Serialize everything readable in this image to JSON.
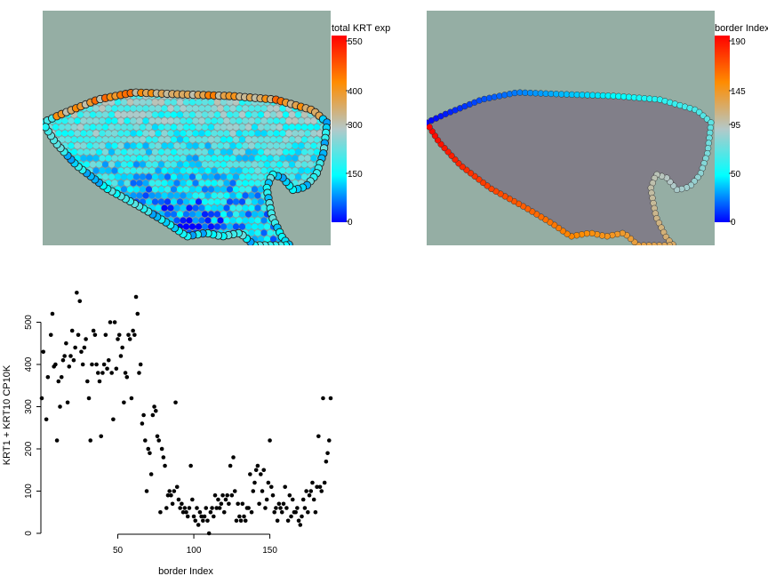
{
  "panels": [
    {
      "legend_title": "total KRT exp",
      "legend_ticks": [
        "550",
        "400",
        "300",
        "150",
        "0"
      ],
      "legend_colors": [
        "#ff0000",
        "#ff8c00",
        "#b4c8c8",
        "#00ffff",
        "#0000ff"
      ],
      "tissue_color": "#7b6f80",
      "background_color": "#95aea4"
    },
    {
      "legend_title": "border Index",
      "legend_ticks": [
        "190",
        "145",
        "95",
        "50",
        "0"
      ],
      "legend_colors": [
        "#ff0000",
        "#ff8c00",
        "#b4c8c8",
        "#00ffff",
        "#0000ff"
      ],
      "tissue_color": "#7b6f80",
      "background_color": "#95aea4"
    }
  ],
  "chart_data": {
    "type": "scatter",
    "xlabel": "border Index",
    "ylabel": "KRT1 + KRT10 CP10K",
    "x_ticks": [
      "50",
      "100",
      "150"
    ],
    "y_ticks": [
      "0",
      "100",
      "200",
      "300",
      "400",
      "500"
    ],
    "xlim": [
      0,
      190
    ],
    "ylim": [
      0,
      560
    ],
    "series_color": "#000000",
    "points": [
      [
        0,
        320
      ],
      [
        1,
        430
      ],
      [
        3,
        270
      ],
      [
        4,
        370
      ],
      [
        6,
        470
      ],
      [
        7,
        520
      ],
      [
        8,
        395
      ],
      [
        9,
        400
      ],
      [
        10,
        220
      ],
      [
        11,
        360
      ],
      [
        12,
        300
      ],
      [
        13,
        370
      ],
      [
        14,
        410
      ],
      [
        15,
        420
      ],
      [
        16,
        450
      ],
      [
        17,
        310
      ],
      [
        18,
        395
      ],
      [
        19,
        420
      ],
      [
        20,
        480
      ],
      [
        21,
        410
      ],
      [
        22,
        440
      ],
      [
        23,
        570
      ],
      [
        24,
        470
      ],
      [
        25,
        550
      ],
      [
        26,
        430
      ],
      [
        27,
        400
      ],
      [
        28,
        440
      ],
      [
        29,
        460
      ],
      [
        30,
        360
      ],
      [
        31,
        320
      ],
      [
        32,
        220
      ],
      [
        33,
        400
      ],
      [
        34,
        480
      ],
      [
        35,
        470
      ],
      [
        36,
        400
      ],
      [
        37,
        380
      ],
      [
        38,
        360
      ],
      [
        39,
        230
      ],
      [
        40,
        380
      ],
      [
        41,
        400
      ],
      [
        42,
        470
      ],
      [
        43,
        390
      ],
      [
        44,
        410
      ],
      [
        45,
        500
      ],
      [
        46,
        380
      ],
      [
        47,
        270
      ],
      [
        48,
        500
      ],
      [
        49,
        390
      ],
      [
        50,
        460
      ],
      [
        51,
        470
      ],
      [
        52,
        420
      ],
      [
        53,
        440
      ],
      [
        54,
        310
      ],
      [
        55,
        380
      ],
      [
        56,
        370
      ],
      [
        57,
        470
      ],
      [
        58,
        460
      ],
      [
        59,
        320
      ],
      [
        60,
        480
      ],
      [
        61,
        470
      ],
      [
        62,
        560
      ],
      [
        63,
        520
      ],
      [
        64,
        380
      ],
      [
        65,
        400
      ],
      [
        66,
        260
      ],
      [
        67,
        280
      ],
      [
        68,
        220
      ],
      [
        69,
        100
      ],
      [
        70,
        200
      ],
      [
        71,
        190
      ],
      [
        72,
        140
      ],
      [
        73,
        280
      ],
      [
        74,
        300
      ],
      [
        75,
        290
      ],
      [
        76,
        230
      ],
      [
        77,
        220
      ],
      [
        78,
        50
      ],
      [
        79,
        200
      ],
      [
        80,
        180
      ],
      [
        81,
        160
      ],
      [
        82,
        60
      ],
      [
        83,
        90
      ],
      [
        84,
        100
      ],
      [
        85,
        90
      ],
      [
        86,
        70
      ],
      [
        87,
        100
      ],
      [
        88,
        310
      ],
      [
        89,
        110
      ],
      [
        90,
        80
      ],
      [
        91,
        60
      ],
      [
        92,
        70
      ],
      [
        93,
        50
      ],
      [
        94,
        60
      ],
      [
        95,
        50
      ],
      [
        96,
        40
      ],
      [
        97,
        60
      ],
      [
        98,
        160
      ],
      [
        99,
        80
      ],
      [
        100,
        40
      ],
      [
        101,
        30
      ],
      [
        102,
        60
      ],
      [
        103,
        20
      ],
      [
        104,
        50
      ],
      [
        105,
        40
      ],
      [
        106,
        30
      ],
      [
        107,
        40
      ],
      [
        108,
        60
      ],
      [
        109,
        30
      ],
      [
        110,
        0
      ],
      [
        111,
        50
      ],
      [
        112,
        60
      ],
      [
        113,
        40
      ],
      [
        114,
        90
      ],
      [
        115,
        60
      ],
      [
        116,
        80
      ],
      [
        117,
        60
      ],
      [
        118,
        70
      ],
      [
        119,
        90
      ],
      [
        120,
        50
      ],
      [
        121,
        80
      ],
      [
        122,
        90
      ],
      [
        123,
        70
      ],
      [
        124,
        160
      ],
      [
        125,
        90
      ],
      [
        126,
        180
      ],
      [
        127,
        100
      ],
      [
        128,
        30
      ],
      [
        129,
        70
      ],
      [
        130,
        40
      ],
      [
        131,
        30
      ],
      [
        132,
        70
      ],
      [
        133,
        40
      ],
      [
        134,
        30
      ],
      [
        135,
        60
      ],
      [
        136,
        60
      ],
      [
        137,
        140
      ],
      [
        138,
        50
      ],
      [
        139,
        100
      ],
      [
        140,
        120
      ],
      [
        141,
        150
      ],
      [
        142,
        160
      ],
      [
        143,
        70
      ],
      [
        144,
        140
      ],
      [
        145,
        100
      ],
      [
        146,
        150
      ],
      [
        147,
        60
      ],
      [
        148,
        80
      ],
      [
        149,
        120
      ],
      [
        150,
        220
      ],
      [
        151,
        110
      ],
      [
        152,
        90
      ],
      [
        153,
        50
      ],
      [
        154,
        60
      ],
      [
        155,
        30
      ],
      [
        156,
        70
      ],
      [
        157,
        60
      ],
      [
        158,
        50
      ],
      [
        159,
        70
      ],
      [
        160,
        110
      ],
      [
        161,
        60
      ],
      [
        162,
        30
      ],
      [
        163,
        90
      ],
      [
        164,
        40
      ],
      [
        165,
        80
      ],
      [
        166,
        50
      ],
      [
        167,
        50
      ],
      [
        168,
        60
      ],
      [
        169,
        30
      ],
      [
        170,
        20
      ],
      [
        171,
        40
      ],
      [
        172,
        80
      ],
      [
        173,
        60
      ],
      [
        174,
        100
      ],
      [
        175,
        50
      ],
      [
        176,
        90
      ],
      [
        177,
        100
      ],
      [
        178,
        120
      ],
      [
        179,
        80
      ],
      [
        180,
        50
      ],
      [
        181,
        110
      ],
      [
        182,
        230
      ],
      [
        183,
        110
      ],
      [
        184,
        100
      ],
      [
        185,
        320
      ],
      [
        186,
        120
      ],
      [
        187,
        170
      ],
      [
        188,
        190
      ],
      [
        189,
        220
      ],
      [
        190,
        320
      ]
    ]
  }
}
